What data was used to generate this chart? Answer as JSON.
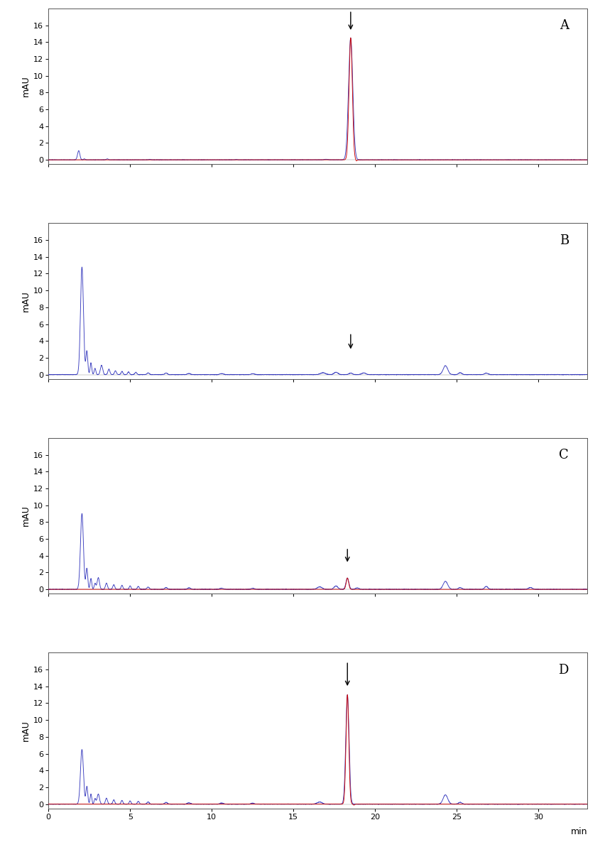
{
  "panels": [
    "A",
    "B",
    "C",
    "D"
  ],
  "xlim": [
    0,
    33
  ],
  "ylim": [
    -0.5,
    18
  ],
  "yticks": [
    0,
    2,
    4,
    6,
    8,
    10,
    12,
    14,
    16
  ],
  "xticks": [
    0,
    5,
    10,
    15,
    20,
    25,
    30
  ],
  "xlabel": "min",
  "ylabel": "mAU",
  "line_color_blue": "#3a3dbf",
  "line_color_red": "#cc0000",
  "bg_color": "#ffffff",
  "panel_label_fontsize": 13,
  "axis_fontsize": 9,
  "tick_fontsize": 8,
  "arrows": [
    {
      "x": 18.5,
      "y_start": 17.8,
      "y_end": 15.2
    },
    {
      "x": 18.5,
      "y_start": 5.0,
      "y_end": 2.8
    },
    {
      "x": 18.3,
      "y_start": 5.0,
      "y_end": 3.0
    },
    {
      "x": 18.3,
      "y_start": 17.0,
      "y_end": 13.8
    }
  ]
}
